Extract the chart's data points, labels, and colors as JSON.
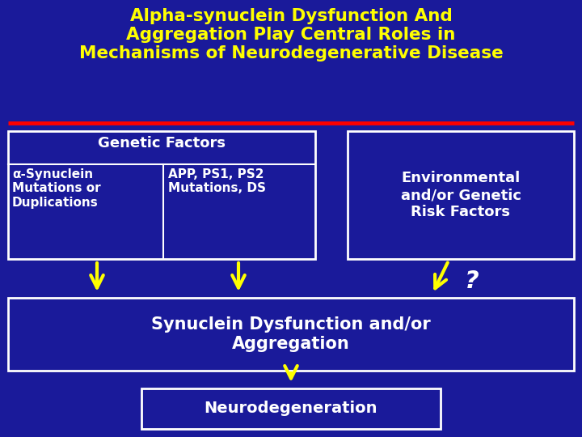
{
  "bg_color": "#1a1a9a",
  "title_line1": "Alpha-synuclein Dysfunction And",
  "title_line2": "Aggregation Play Central Roles in",
  "title_line3": "Mechanisms of Neurodegenerative Disease",
  "title_color": "#ffff00",
  "title_fontsize": 15.5,
  "box_edge_color": "#ffffff",
  "genetic_header": "Genetic Factors",
  "genetic_sub1": "α-Synuclein\nMutations or\nDuplications",
  "genetic_sub2": "APP, PS1, PS2\nMutations, DS",
  "env_text": "Environmental\nand/or Genetic\nRisk Factors",
  "synuclein_text": "Synuclein Dysfunction and/or\nAggregation",
  "neuro_text": "Neurodegeneration",
  "white": "#ffffff",
  "yellow": "#ffff00",
  "question_mark": "?"
}
